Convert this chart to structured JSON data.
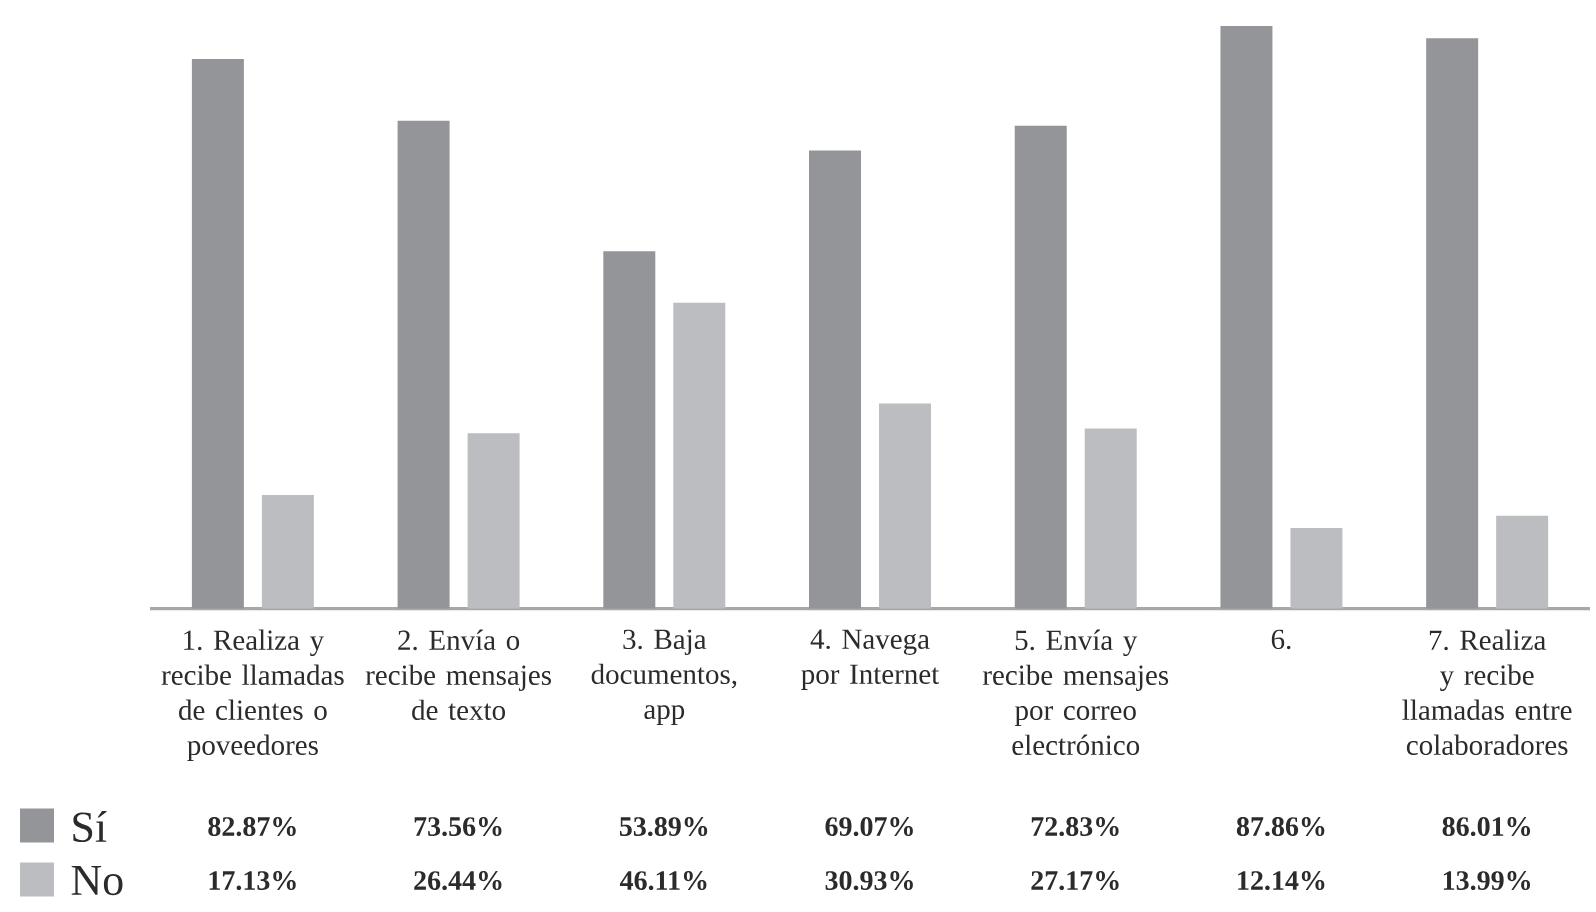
{
  "chart_data": {
    "type": "bar",
    "categories": [
      "1. Realiza y recibe llamadas de clientes o poveedores",
      "2. Envía o recibe mensajes de texto",
      "3. Baja documentos, app",
      "4. Navega por Internet",
      "5. Envía y recibe mensajes por correo electrónico",
      "6.",
      "7. Realiza y recibe llamadas entre colaboradores"
    ],
    "series": [
      {
        "name": "Sí",
        "color": "#949599",
        "values": [
          82.87,
          73.56,
          53.89,
          69.07,
          72.83,
          87.86,
          86.01
        ],
        "value_labels": [
          "82.87%",
          "73.56%",
          "53.89%",
          "69.07%",
          "72.83%",
          "87.86%",
          "86.01%"
        ]
      },
      {
        "name": "No",
        "color": "#bcbdc1",
        "values": [
          17.13,
          26.44,
          46.11,
          30.93,
          27.17,
          12.14,
          13.99
        ],
        "value_labels": [
          "17.13%",
          "26.44%",
          "46.11%",
          "30.93%",
          "27.17%",
          "12.14%",
          "13.99%"
        ]
      }
    ],
    "tick_labels": "x",
    "legend": "bottom left"
  }
}
